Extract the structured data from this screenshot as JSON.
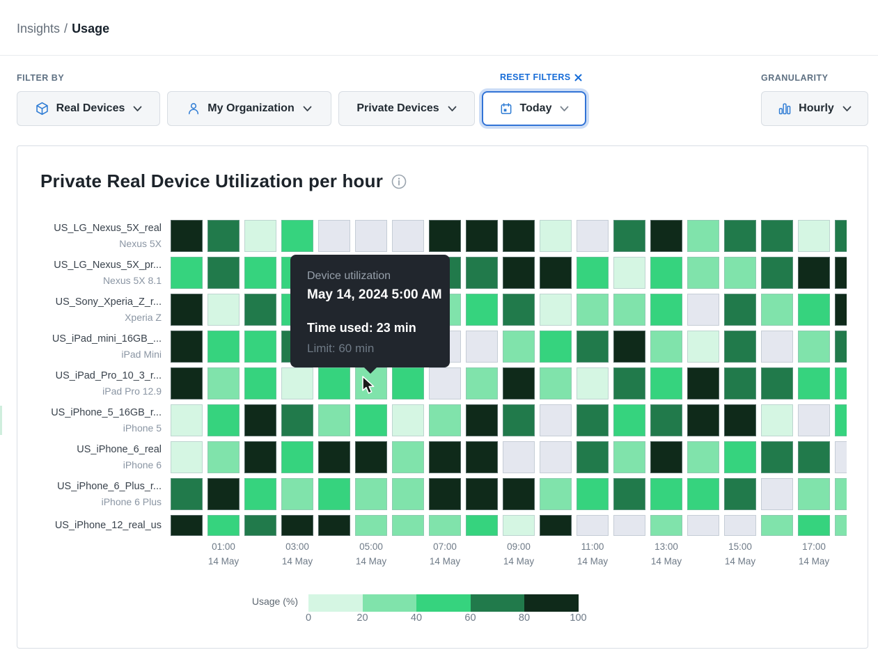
{
  "header": {
    "breadcrumb_parent": "Insights",
    "breadcrumb_separator": "/",
    "breadcrumb_current": "Usage"
  },
  "filters": {
    "section_label": "FILTER BY",
    "reset_label": "RESET FILTERS",
    "granularity_label": "GRANULARITY",
    "buttons": {
      "real_devices": "Real Devices",
      "organization": "My Organization",
      "device_type": "Private Devices",
      "date_range": "Today",
      "granularity": "Hourly"
    }
  },
  "card": {
    "title": "Private Real Device Utilization per hour"
  },
  "tooltip": {
    "title": "Device utilization",
    "datetime": "May 14, 2024 5:00 AM",
    "time_used": "Time used: 23 min",
    "limit": "Limit: 60 min"
  },
  "colors": {
    "accent_blue": "#2d7bd4",
    "link_blue": "#176cd7",
    "selected_border": "#3173d6",
    "tooltip_bg": "#21262d",
    "empty_cell": "#e4e7ef",
    "heat_levels": [
      "#d5f6e3",
      "#80e3ab",
      "#36d37e",
      "#217a4b",
      "#0f2a1a"
    ]
  },
  "chart_data": {
    "type": "heatmap",
    "title": "Private Real Device Utilization per hour",
    "value_encoding": "0 = no data (gray); 1-5 = usage buckets 0-20%, 20-40%, 40-60%, 60-80%, 80-100%",
    "columns": [
      "00:00",
      "01:00",
      "02:00",
      "03:00",
      "04:00",
      "05:00",
      "06:00",
      "07:00",
      "08:00",
      "09:00",
      "10:00",
      "11:00",
      "12:00",
      "13:00",
      "14:00",
      "15:00",
      "16:00",
      "17:00",
      "18:00"
    ],
    "x_ticks": [
      {
        "time": "01:00",
        "date": "14 May"
      },
      {
        "time": "03:00",
        "date": "14 May"
      },
      {
        "time": "05:00",
        "date": "14 May"
      },
      {
        "time": "07:00",
        "date": "14 May"
      },
      {
        "time": "09:00",
        "date": "14 May"
      },
      {
        "time": "11:00",
        "date": "14 May"
      },
      {
        "time": "13:00",
        "date": "14 May"
      },
      {
        "time": "15:00",
        "date": "14 May"
      },
      {
        "time": "17:00",
        "date": "14 May"
      }
    ],
    "legend": {
      "label": "Usage (%)",
      "ticks": [
        "0",
        "20",
        "40",
        "60",
        "80",
        "100"
      ]
    },
    "rows": [
      {
        "device": "US_LG_Nexus_5X_real",
        "model": "Nexus 5X",
        "values": [
          5,
          4,
          1,
          3,
          0,
          0,
          0,
          5,
          5,
          5,
          1,
          0,
          4,
          5,
          2,
          4,
          4,
          1,
          4
        ]
      },
      {
        "device": "US_LG_Nexus_5X_pr...",
        "model": "Nexus 5X 8.1",
        "values": [
          3,
          4,
          3,
          3,
          3,
          2,
          4,
          4,
          4,
          5,
          5,
          3,
          1,
          3,
          2,
          2,
          4,
          5,
          5
        ]
      },
      {
        "device": "US_Sony_Xperia_Z_r...",
        "model": "Xperia Z",
        "values": [
          5,
          1,
          4,
          3,
          2,
          3,
          1,
          2,
          3,
          4,
          1,
          2,
          2,
          3,
          0,
          4,
          2,
          3,
          5
        ]
      },
      {
        "device": "US_iPad_mini_16GB_...",
        "model": "iPad Mini",
        "values": [
          5,
          3,
          3,
          4,
          3,
          0,
          2,
          0,
          0,
          2,
          3,
          4,
          5,
          2,
          1,
          4,
          0,
          2,
          4
        ]
      },
      {
        "device": "US_iPad_Pro_10_3_r...",
        "model": "iPad Pro 12.9",
        "values": [
          5,
          2,
          3,
          1,
          3,
          2,
          3,
          0,
          2,
          5,
          2,
          1,
          4,
          3,
          5,
          4,
          4,
          3,
          3
        ]
      },
      {
        "device": "US_iPhone_5_16GB_r...",
        "model": "iPhone 5",
        "values": [
          1,
          3,
          5,
          4,
          2,
          3,
          1,
          2,
          5,
          4,
          0,
          4,
          3,
          4,
          5,
          5,
          1,
          0,
          3
        ]
      },
      {
        "device": "US_iPhone_6_real",
        "model": "iPhone 6",
        "values": [
          1,
          2,
          5,
          3,
          5,
          5,
          2,
          5,
          5,
          0,
          0,
          4,
          2,
          5,
          2,
          3,
          4,
          4,
          0
        ]
      },
      {
        "device": "US_iPhone_6_Plus_r...",
        "model": "iPhone 6 Plus",
        "values": [
          4,
          5,
          3,
          2,
          3,
          2,
          2,
          5,
          5,
          5,
          2,
          3,
          4,
          3,
          3,
          4,
          0,
          2,
          2
        ]
      },
      {
        "device": "US_iPhone_12_real_us",
        "model": "",
        "values": [
          5,
          3,
          4,
          5,
          5,
          2,
          2,
          2,
          3,
          1,
          5,
          0,
          0,
          2,
          0,
          0,
          2,
          3,
          2
        ]
      }
    ]
  }
}
